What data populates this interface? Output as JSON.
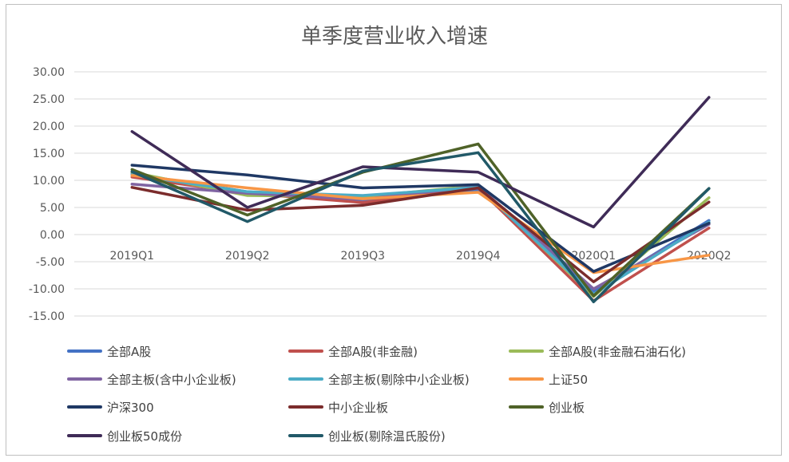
{
  "chart_data": {
    "type": "line",
    "title": "单季度营业收入增速",
    "xlabel": "",
    "ylabel": "",
    "categories": [
      "2019Q1",
      "2019Q2",
      "2019Q3",
      "2019Q4",
      "2020Q1",
      "2020Q2"
    ],
    "ylim": [
      -15,
      30
    ],
    "yticks": [
      "30.00",
      "25.00",
      "20.00",
      "15.00",
      "10.00",
      "5.00",
      "0.00",
      "-5.00",
      "-10.00",
      "-15.00"
    ],
    "grid": true,
    "legend_position": "bottom",
    "series": [
      {
        "name": "全部A股",
        "color": "#4472c4",
        "values": [
          11.2,
          7.9,
          6.3,
          8.3,
          -10.5,
          2.6
        ]
      },
      {
        "name": "全部A股(非金融)",
        "color": "#c0504d",
        "values": [
          10.6,
          7.6,
          5.9,
          8.6,
          -12.2,
          1.2
        ]
      },
      {
        "name": "全部A股(非金融石油石化)",
        "color": "#9bbb59",
        "values": [
          11.5,
          7.2,
          7.0,
          9.0,
          -11.4,
          6.8
        ]
      },
      {
        "name": "全部主板(含中小企业板)",
        "color": "#8064a2",
        "values": [
          9.3,
          7.6,
          6.5,
          8.9,
          -10.0,
          1.9
        ]
      },
      {
        "name": "全部主板(剔除中小企业板)",
        "color": "#4bacc6",
        "values": [
          11.0,
          7.9,
          7.2,
          8.7,
          -11.0,
          2.3
        ]
      },
      {
        "name": "上证50",
        "color": "#f79646",
        "values": [
          10.9,
          8.6,
          6.6,
          7.8,
          -7.0,
          -3.8
        ]
      },
      {
        "name": "沪深300",
        "color": "#1f3864",
        "values": [
          12.8,
          11.0,
          8.6,
          9.2,
          -6.8,
          2.1
        ]
      },
      {
        "name": "中小企业板",
        "color": "#7b2c2c",
        "values": [
          8.7,
          4.5,
          5.4,
          8.6,
          -8.7,
          6.0
        ]
      },
      {
        "name": "创业板",
        "color": "#4f6228",
        "values": [
          12.0,
          3.6,
          11.5,
          16.7,
          -11.3,
          8.5
        ]
      },
      {
        "name": "创业板50成份",
        "color": "#3f2b57",
        "values": [
          19.0,
          5.0,
          12.5,
          11.5,
          1.4,
          25.3
        ]
      },
      {
        "name": "创业板(剔除温氏股份)",
        "color": "#215968",
        "values": [
          11.6,
          2.4,
          11.7,
          15.1,
          -12.4,
          8.5
        ]
      }
    ]
  }
}
